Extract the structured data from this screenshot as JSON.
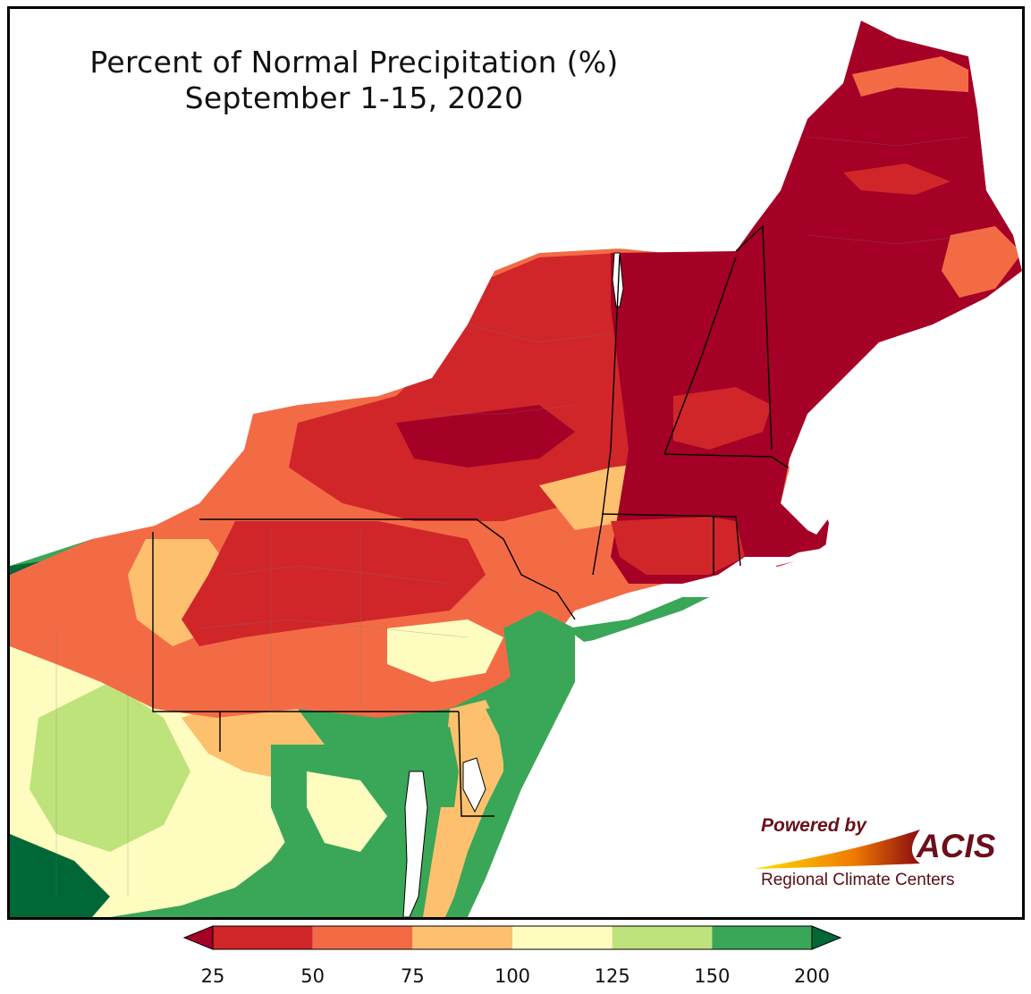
{
  "title": {
    "line1": "Percent of Normal Precipitation (%)",
    "line2": "September 1-15, 2020"
  },
  "legend": {
    "ticks": [
      "25",
      "50",
      "75",
      "100",
      "125",
      "150",
      "200"
    ],
    "bins": [
      {
        "range": "<25",
        "color": "#a50026"
      },
      {
        "range": "25-50",
        "color": "#d0262a"
      },
      {
        "range": "50-75",
        "color": "#f36b45"
      },
      {
        "range": "75-100",
        "color": "#fdc06f"
      },
      {
        "range": "100-125",
        "color": "#fefcbf"
      },
      {
        "range": "125-150",
        "color": "#bfe37b"
      },
      {
        "range": "150-200",
        "color": "#39a757"
      },
      {
        "range": ">200",
        "color": "#006837"
      }
    ]
  },
  "branding": {
    "powered": "Powered by",
    "name": "ACIS",
    "sub": "Regional Climate Centers"
  },
  "colors": {
    "water": "#ffffff",
    "border": "#000000",
    "county": "#888888"
  }
}
